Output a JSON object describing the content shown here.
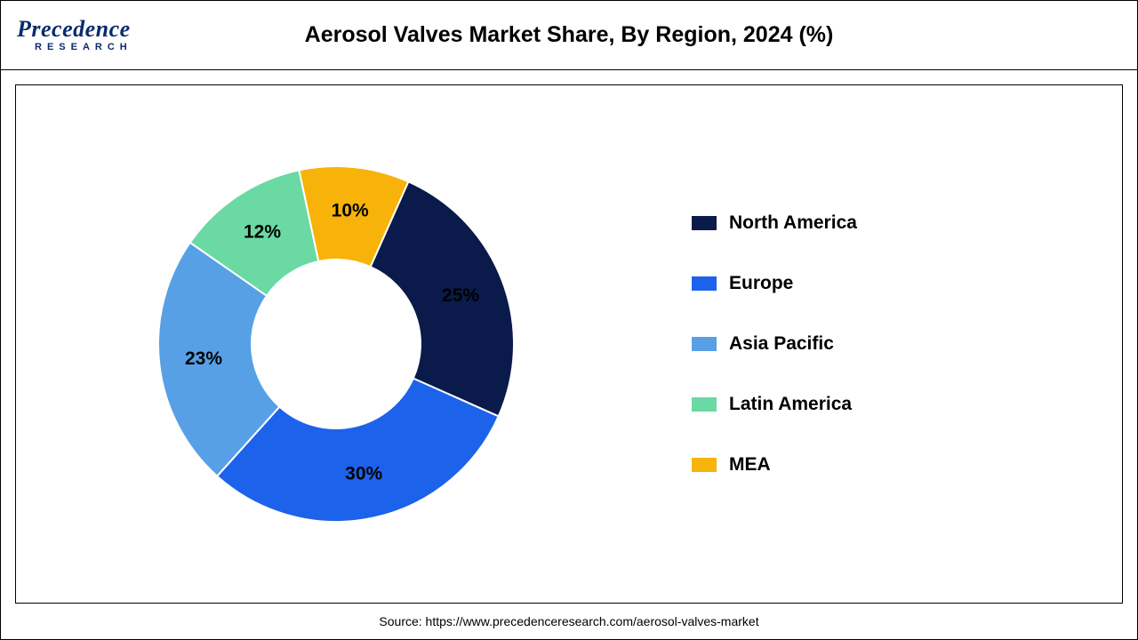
{
  "header": {
    "logo_main": "Precedence",
    "logo_sub": "RESEARCH",
    "title": "Aerosol Valves Market Share, By Region, 2024 (%)"
  },
  "chart": {
    "type": "donut",
    "background_color": "#ffffff",
    "border_color": "#000000",
    "outer_radius": 200,
    "inner_radius": 95,
    "start_angle_deg": 24,
    "label_radius": 150,
    "label_fontsize": 21,
    "label_fontweight": "700",
    "slices": [
      {
        "label": "North America",
        "value": 25,
        "color": "#0a1a4a",
        "display": "25%"
      },
      {
        "label": "Europe",
        "value": 30,
        "color": "#1d62ea",
        "display": "30%"
      },
      {
        "label": "Asia Pacific",
        "value": 23,
        "color": "#57a0e6",
        "display": "23%"
      },
      {
        "label": "Latin America",
        "value": 12,
        "color": "#6ad9a4",
        "display": "12%"
      },
      {
        "label": "MEA",
        "value": 10,
        "color": "#f7b30a",
        "display": "10%"
      }
    ],
    "direction": "clockwise"
  },
  "legend": {
    "swatch_width": 28,
    "swatch_height": 16,
    "gap": 44,
    "fontsize": 21,
    "fontweight": "700",
    "items": [
      {
        "label": "North America",
        "color": "#0a1a4a"
      },
      {
        "label": "Europe",
        "color": "#1d62ea"
      },
      {
        "label": "Asia Pacific",
        "color": "#57a0e6"
      },
      {
        "label": "Latin America",
        "color": "#6ad9a4"
      },
      {
        "label": "MEA",
        "color": "#f7b30a"
      }
    ]
  },
  "source": {
    "prefix": "Source: ",
    "url": "https://www.precedenceresearch.com/aerosol-valves-market"
  }
}
